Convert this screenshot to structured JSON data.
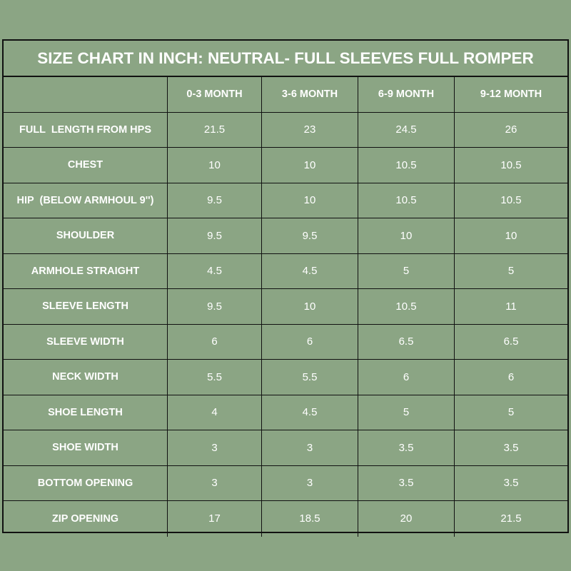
{
  "table": {
    "title": "SIZE CHART IN INCH: NEUTRAL- FULL SLEEVES FULL ROMPER",
    "header": [
      "0-3 MONTH",
      "3-6 MONTH",
      "6-9 MONTH",
      "9-12 MONTH"
    ],
    "rows": [
      {
        "label": "FULL  LENGTH FROM HPS",
        "values": [
          21.5,
          23,
          24.5,
          26
        ]
      },
      {
        "label": "CHEST",
        "values": [
          10,
          10,
          10.5,
          10.5
        ]
      },
      {
        "label": "HIP  (BELOW ARMHOUL 9'')",
        "values": [
          9.5,
          10,
          10.5,
          10.5
        ]
      },
      {
        "label": "SHOULDER",
        "values": [
          9.5,
          9.5,
          10,
          10
        ]
      },
      {
        "label": "ARMHOLE STRAIGHT",
        "values": [
          4.5,
          4.5,
          5,
          5
        ]
      },
      {
        "label": "SLEEVE LENGTH",
        "values": [
          9.5,
          10,
          10.5,
          11
        ]
      },
      {
        "label": "SLEEVE WIDTH",
        "values": [
          6,
          6,
          6.5,
          6.5
        ]
      },
      {
        "label": "NECK WIDTH",
        "values": [
          5.5,
          5.5,
          6,
          6
        ]
      },
      {
        "label": "SHOE LENGTH",
        "values": [
          4,
          4.5,
          5,
          5
        ]
      },
      {
        "label": "SHOE WIDTH",
        "values": [
          3,
          3,
          3.5,
          3.5
        ]
      },
      {
        "label": "BOTTOM OPENING",
        "values": [
          3,
          3,
          3.5,
          3.5
        ]
      },
      {
        "label": "ZIP OPENING",
        "values": [
          17,
          18.5,
          20,
          21.5
        ]
      }
    ]
  }
}
